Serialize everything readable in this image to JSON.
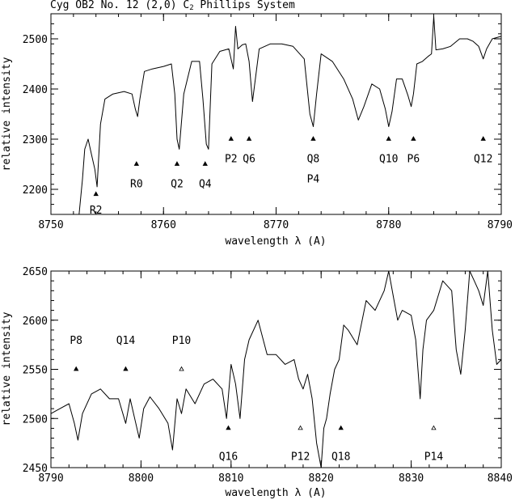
{
  "title": {
    "prefix": "Cyg OB2 No. 12 (2,0) C",
    "subscript": "2",
    "suffix": " Phillips System"
  },
  "chart_data": [
    {
      "type": "line",
      "xlabel": "wavelength λ (A)",
      "ylabel": "relative intensity",
      "xlim": [
        8750,
        8790
      ],
      "ylim": [
        2150,
        2550
      ],
      "xticks": [
        8750,
        8760,
        8770,
        8780,
        8790
      ],
      "yticks": [
        2200,
        2300,
        2400,
        2500
      ],
      "x_minor_step": 2,
      "y_minor_step": 20,
      "series": [
        {
          "x": [
            8752.5,
            8752.8,
            8753.0,
            8753.3,
            8753.6,
            8753.9,
            8754.1,
            8754.4,
            8754.8,
            8755.5,
            8756.5,
            8757.2,
            8757.5,
            8757.7,
            8757.9,
            8758.3,
            8759.0,
            8760.0,
            8760.7,
            8761.0,
            8761.2,
            8761.4,
            8761.8,
            8762.5,
            8763.2,
            8763.5,
            8763.8,
            8764.0,
            8764.3,
            8765.0,
            8765.8,
            8766.0,
            8766.2,
            8766.4,
            8766.6,
            8767.0,
            8767.3,
            8767.6,
            8767.9,
            8768.5,
            8769.5,
            8770.5,
            8771.5,
            8772.5,
            8773.0,
            8773.3,
            8773.6,
            8774.0,
            8775.0,
            8776.0,
            8776.8,
            8777.3,
            8777.8,
            8778.5,
            8779.2,
            8779.7,
            8780.0,
            8780.3,
            8780.7,
            8781.2,
            8781.7,
            8782.0,
            8782.2,
            8782.5,
            8783.0,
            8783.5,
            8783.8,
            8784.0,
            8784.2,
            8784.8,
            8785.5,
            8786.3,
            8787.0,
            8787.5,
            8788.0,
            8788.4,
            8788.7,
            8789.2,
            8790.0
          ],
          "y": [
            2150,
            2220,
            2280,
            2300,
            2270,
            2240,
            2205,
            2330,
            2380,
            2390,
            2395,
            2390,
            2360,
            2345,
            2380,
            2435,
            2440,
            2445,
            2450,
            2390,
            2300,
            2280,
            2390,
            2455,
            2455,
            2380,
            2290,
            2280,
            2450,
            2475,
            2480,
            2460,
            2440,
            2525,
            2480,
            2488,
            2490,
            2455,
            2375,
            2480,
            2490,
            2490,
            2485,
            2460,
            2350,
            2325,
            2390,
            2470,
            2455,
            2420,
            2380,
            2338,
            2365,
            2410,
            2400,
            2360,
            2325,
            2355,
            2420,
            2420,
            2388,
            2365,
            2390,
            2450,
            2455,
            2465,
            2470,
            2545,
            2478,
            2480,
            2485,
            2500,
            2500,
            2495,
            2485,
            2460,
            2480,
            2500,
            2505
          ]
        }
      ],
      "markers": [
        {
          "x": 8754.0,
          "y": 2190,
          "label": "R2",
          "label_y": 2160
        },
        {
          "x": 8757.6,
          "y": 2250,
          "label": "R0",
          "label_y": 2212
        },
        {
          "x": 8761.2,
          "y": 2250,
          "label": "Q2",
          "label_y": 2212
        },
        {
          "x": 8763.7,
          "y": 2250,
          "label": "Q4",
          "label_y": 2212
        },
        {
          "x": 8766.0,
          "y": 2300,
          "label": "P2",
          "label_y": 2262
        },
        {
          "x": 8767.6,
          "y": 2300,
          "label": "Q6",
          "label_y": 2262
        },
        {
          "x": 8773.3,
          "y": 2300,
          "label": "Q8",
          "label_y": 2262
        },
        {
          "x": 8780.0,
          "y": 2300,
          "label": "Q10",
          "label_y": 2262
        },
        {
          "x": 8782.2,
          "y": 2300,
          "label": "P6",
          "label_y": 2262
        },
        {
          "x": 8788.4,
          "y": 2300,
          "label": "Q12",
          "label_y": 2262
        }
      ],
      "annotations": [
        {
          "text": "P4",
          "x": 8773.3,
          "y": 2222
        }
      ]
    },
    {
      "type": "line",
      "xlabel": "wavelength λ (A)",
      "ylabel": "relative intensity",
      "xlim": [
        8790,
        8840
      ],
      "ylim": [
        2450,
        2650
      ],
      "xticks": [
        8790,
        8800,
        8810,
        8820,
        8830,
        8840
      ],
      "yticks": [
        2450,
        2500,
        2550,
        2600,
        2650
      ],
      "x_minor_step": 2,
      "y_minor_step": 10,
      "series": [
        {
          "x": [
            8790.0,
            8791.0,
            8792.0,
            8792.6,
            8793.0,
            8793.5,
            8794.5,
            8795.5,
            8796.5,
            8797.5,
            8798.3,
            8798.8,
            8799.3,
            8799.8,
            8800.3,
            8801.0,
            8802.0,
            8803.0,
            8803.5,
            8804.0,
            8804.5,
            8805.0,
            8806.0,
            8807.0,
            8808.0,
            8809.0,
            8809.5,
            8810.0,
            8810.5,
            8811.0,
            8811.5,
            8812.0,
            8813.0,
            8814.0,
            8815.0,
            8816.0,
            8817.0,
            8817.5,
            8818.0,
            8818.5,
            8819.0,
            8819.5,
            8820.0,
            8820.3,
            8820.6,
            8821.0,
            8821.5,
            8822.0,
            8822.5,
            8823.0,
            8824.0,
            8825.0,
            8826.0,
            8827.0,
            8827.5,
            8828.0,
            8828.5,
            8829.0,
            8830.0,
            8830.5,
            8831.0,
            8831.3,
            8831.7,
            8832.5,
            8833.5,
            8834.5,
            8835.0,
            8835.5,
            8836.0,
            8836.5,
            8837.0,
            8837.5,
            8838.0,
            8838.5,
            8839.0,
            8839.5,
            8840.0
          ],
          "y": [
            2505,
            2510,
            2515,
            2495,
            2478,
            2505,
            2525,
            2530,
            2520,
            2520,
            2495,
            2520,
            2500,
            2480,
            2510,
            2522,
            2510,
            2495,
            2468,
            2520,
            2505,
            2530,
            2515,
            2535,
            2540,
            2530,
            2500,
            2555,
            2535,
            2500,
            2560,
            2580,
            2600,
            2565,
            2565,
            2555,
            2560,
            2540,
            2530,
            2545,
            2520,
            2475,
            2450,
            2490,
            2500,
            2525,
            2550,
            2560,
            2595,
            2590,
            2575,
            2620,
            2610,
            2630,
            2650,
            2625,
            2600,
            2610,
            2605,
            2580,
            2520,
            2570,
            2600,
            2610,
            2640,
            2630,
            2570,
            2545,
            2590,
            2650,
            2640,
            2630,
            2615,
            2650,
            2590,
            2555,
            2560
          ]
        }
      ],
      "markers": [
        {
          "x": 8792.8,
          "y": 2550,
          "filled": true,
          "label": "P8",
          "label_y": 2580
        },
        {
          "x": 8798.3,
          "y": 2550,
          "filled": true,
          "label": "Q14",
          "label_y": 2580
        },
        {
          "x": 8804.5,
          "y": 2550,
          "filled": false,
          "label": "P10",
          "label_y": 2580
        },
        {
          "x": 8809.7,
          "y": 2490,
          "filled": true,
          "label": "Q16",
          "label_y": 2462
        },
        {
          "x": 8817.7,
          "y": 2490,
          "filled": false,
          "label": "P12",
          "label_y": 2462
        },
        {
          "x": 8822.2,
          "y": 2490,
          "filled": true,
          "label": "Q18",
          "label_y": 2462
        },
        {
          "x": 8832.5,
          "y": 2490,
          "filled": false,
          "label": "P14",
          "label_y": 2462
        }
      ],
      "annotations": []
    }
  ]
}
